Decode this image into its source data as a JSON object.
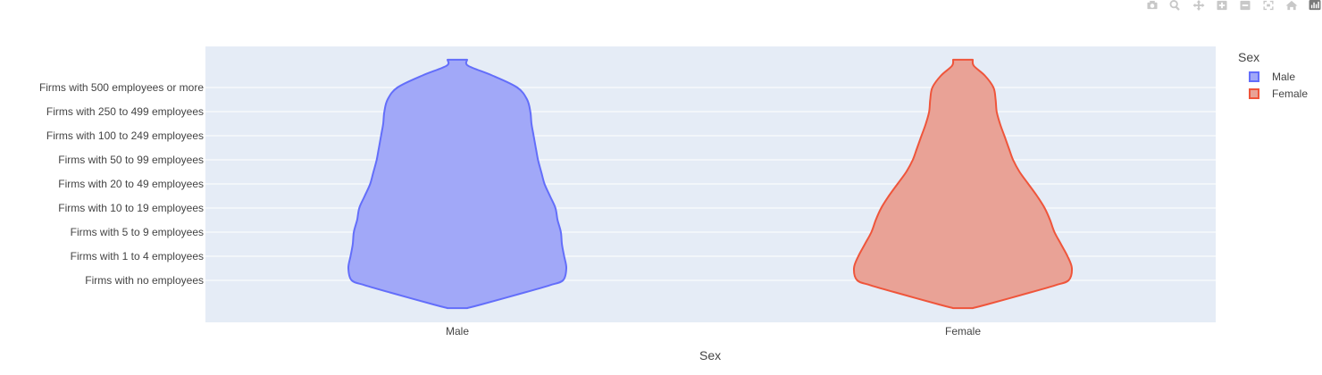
{
  "modebar": {
    "buttons": [
      {
        "name": "camera-icon"
      },
      {
        "name": "zoom-icon"
      },
      {
        "name": "pan-icon"
      },
      {
        "name": "zoom-in-icon"
      },
      {
        "name": "zoom-out-icon"
      },
      {
        "name": "autoscale-icon"
      },
      {
        "name": "home-icon"
      },
      {
        "name": "plotly-logo-icon"
      }
    ],
    "icon_color": "#c8c8c8",
    "logo_color": "#7a7a7a"
  },
  "chart_data": {
    "type": "violin",
    "title": "",
    "xlabel": "Sex",
    "ylabel": "",
    "categories": [
      "Male",
      "Female"
    ],
    "y_categories": [
      "Firms with no employees",
      "Firms with 1 to 4 employees",
      "Firms with 5 to 9 employees",
      "Firms with 10 to 19 employees",
      "Firms with 20 to 49 employees",
      "Firms with 50 to 99 employees",
      "Firms with 100 to 249 employees",
      "Firms with 250 to 499 employees",
      "Firms with 500 employees or more"
    ],
    "grid": true,
    "plot_bgcolor": "#e5ecf6",
    "legend": {
      "title": "Sex",
      "placement": "right"
    },
    "series": [
      {
        "name": "Male",
        "color": "#636efa",
        "fill": "#a1a8f8",
        "density": [
          {
            "y": -1.15,
            "w": 0.0
          },
          {
            "y": -1.0,
            "w": 0.22
          },
          {
            "y": -0.5,
            "w": 0.62
          },
          {
            "y": -0.2,
            "w": 0.85
          },
          {
            "y": 0.0,
            "w": 0.97
          },
          {
            "y": 0.5,
            "w": 1.0
          },
          {
            "y": 1.0,
            "w": 0.98
          },
          {
            "y": 1.5,
            "w": 0.96
          },
          {
            "y": 2.0,
            "w": 0.95
          },
          {
            "y": 2.5,
            "w": 0.92
          },
          {
            "y": 3.0,
            "w": 0.9
          },
          {
            "y": 3.5,
            "w": 0.85
          },
          {
            "y": 4.0,
            "w": 0.8
          },
          {
            "y": 4.5,
            "w": 0.77
          },
          {
            "y": 5.0,
            "w": 0.74
          },
          {
            "y": 5.5,
            "w": 0.72
          },
          {
            "y": 6.0,
            "w": 0.7
          },
          {
            "y": 6.5,
            "w": 0.68
          },
          {
            "y": 7.0,
            "w": 0.67
          },
          {
            "y": 7.5,
            "w": 0.64
          },
          {
            "y": 8.0,
            "w": 0.55
          },
          {
            "y": 8.5,
            "w": 0.32
          },
          {
            "y": 8.9,
            "w": 0.1
          },
          {
            "y": 9.15,
            "w": 0.0
          }
        ]
      },
      {
        "name": "Female",
        "color": "#ef553b",
        "fill": "#e9a296",
        "density": [
          {
            "y": -1.15,
            "w": 0.0
          },
          {
            "y": -1.0,
            "w": 0.22
          },
          {
            "y": -0.5,
            "w": 0.62
          },
          {
            "y": -0.2,
            "w": 0.85
          },
          {
            "y": 0.0,
            "w": 0.97
          },
          {
            "y": 0.5,
            "w": 1.0
          },
          {
            "y": 1.0,
            "w": 0.96
          },
          {
            "y": 1.5,
            "w": 0.9
          },
          {
            "y": 2.0,
            "w": 0.84
          },
          {
            "y": 2.5,
            "w": 0.8
          },
          {
            "y": 3.0,
            "w": 0.75
          },
          {
            "y": 3.5,
            "w": 0.68
          },
          {
            "y": 4.0,
            "w": 0.6
          },
          {
            "y": 4.5,
            "w": 0.52
          },
          {
            "y": 5.0,
            "w": 0.46
          },
          {
            "y": 5.5,
            "w": 0.42
          },
          {
            "y": 6.0,
            "w": 0.38
          },
          {
            "y": 6.5,
            "w": 0.34
          },
          {
            "y": 7.0,
            "w": 0.31
          },
          {
            "y": 7.5,
            "w": 0.3
          },
          {
            "y": 8.0,
            "w": 0.28
          },
          {
            "y": 8.5,
            "w": 0.2
          },
          {
            "y": 8.9,
            "w": 0.1
          },
          {
            "y": 9.15,
            "w": 0.0
          }
        ]
      }
    ]
  }
}
